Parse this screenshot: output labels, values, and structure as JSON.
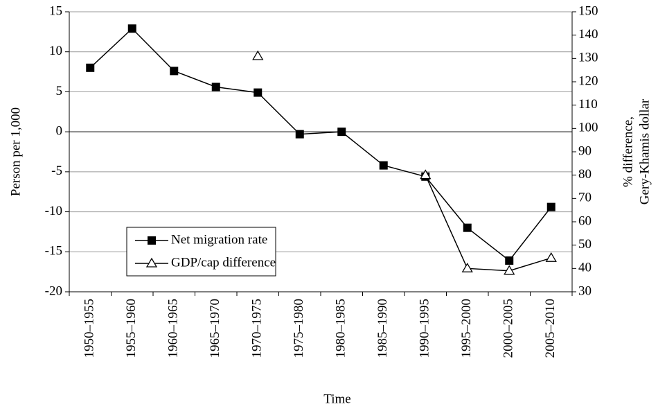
{
  "chart_data": {
    "type": "line",
    "xlabel": "Time",
    "ylabel": "Person per 1,000",
    "y2label": [
      "% difference,",
      "Gery-Khamis dollar"
    ],
    "categories": [
      "1950–1955",
      "1955–1960",
      "1960–1965",
      "1965–1970",
      "1970–1975",
      "1975–1980",
      "1980–1985",
      "1985–1990",
      "1990–1995",
      "1995–2000",
      "2000–2005",
      "2005–2010"
    ],
    "series": [
      {
        "name": "Net migration rate",
        "color": "#000000",
        "marker": "square",
        "values": [
          8,
          12.9,
          7.6,
          5.6,
          4.9,
          -0.3,
          0,
          -4.2,
          -5.6,
          -12,
          -16.1,
          -9.4
        ]
      },
      {
        "name": "GDP/cap difference",
        "color": "#000000",
        "marker": "triangle",
        "axis": "y2",
        "values": [
          null,
          null,
          null,
          null,
          131,
          null,
          null,
          null,
          80,
          40,
          39,
          44.5
        ]
      }
    ],
    "ylim": [
      -20,
      15
    ],
    "yticks": [
      -20,
      -15,
      -10,
      -5,
      0,
      5,
      10,
      15
    ],
    "y2lim": [
      30,
      150
    ],
    "y2ticks": [
      30,
      40,
      50,
      60,
      70,
      80,
      90,
      100,
      110,
      120,
      130,
      140,
      150
    ],
    "grid": true,
    "legend": "lower left"
  }
}
